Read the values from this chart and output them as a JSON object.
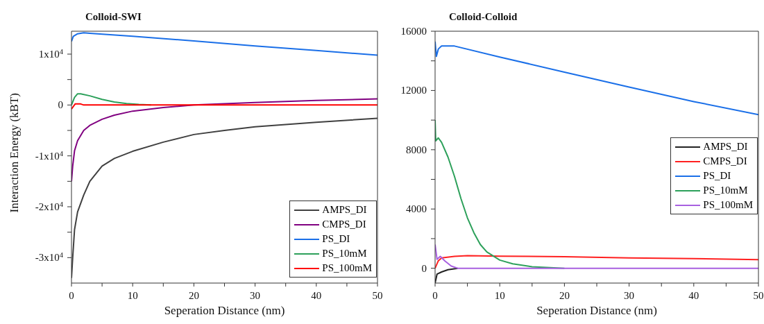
{
  "chart_data": [
    {
      "type": "line",
      "title": "Colloid-SWI",
      "xlabel": "Seperation Distance (nm)",
      "ylabel": "Interaction Energy (kBT)",
      "xlim": [
        0,
        50
      ],
      "xticks": [
        0,
        {
          "value": 5,
          "label": null
        },
        10,
        {
          "value": 15,
          "label": null
        },
        20,
        {
          "value": 25,
          "label": null
        },
        30,
        {
          "value": 35,
          "label": null
        },
        40,
        {
          "value": 45,
          "label": null
        },
        50
      ],
      "ylim": [
        -35000,
        14500
      ],
      "yticks": [
        {
          "value": -30000,
          "label": "-3x10$^{4}$"
        },
        {
          "value": -25000,
          "label": null
        },
        {
          "value": -20000,
          "label": "-2x10$^{4}$"
        },
        {
          "value": -15000,
          "label": null
        },
        {
          "value": -10000,
          "label": "-1x10$^{4}$"
        },
        {
          "value": -5000,
          "label": null
        },
        0,
        {
          "value": 5000,
          "label": null
        },
        {
          "value": 10000,
          "label": "1x10$^{4}$"
        }
      ],
      "legend": "bottom right",
      "marker": "none",
      "line_style": "solid",
      "series": [
        {
          "name": "AMPS_DI",
          "color": "#404040",
          "x": [
            0,
            0.2,
            0.5,
            1,
            2,
            3,
            5,
            7,
            10,
            15,
            20,
            25,
            30,
            40,
            50
          ],
          "values": [
            -34000,
            -30000,
            -24500,
            -21000,
            -17700,
            -15000,
            -12000,
            -10500,
            -9100,
            -7300,
            -5800,
            -5000,
            -4300,
            -3400,
            -2600
          ]
        },
        {
          "name": "CMPS_DI",
          "color": "#800080",
          "x": [
            0,
            0.2,
            0.5,
            1,
            2,
            3,
            5,
            7,
            10,
            15,
            20,
            30,
            40,
            50
          ],
          "values": [
            -15000,
            -12000,
            -9000,
            -7000,
            -5000,
            -4000,
            -2800,
            -2000,
            -1200,
            -500,
            0,
            500,
            900,
            1200
          ]
        },
        {
          "name": "PS_DI",
          "color": "#1a6fe8",
          "x": [
            0,
            0.3,
            1,
            2,
            3,
            10,
            20,
            30,
            40,
            50
          ],
          "values": [
            12500,
            13500,
            14000,
            14200,
            14100,
            13500,
            12600,
            11600,
            10700,
            9800
          ]
        },
        {
          "name": "PS_10mM",
          "color": "#2ca05a",
          "x": [
            0,
            0.5,
            1,
            1.5,
            3,
            5,
            7,
            9,
            11,
            13
          ],
          "values": [
            0,
            1500,
            2200,
            2200,
            1800,
            1100,
            600,
            300,
            100,
            0
          ]
        },
        {
          "name": "PS_100mM",
          "color": "#ff0000",
          "x": [
            0,
            0.3,
            0.6,
            1.5,
            2,
            50
          ],
          "values": [
            -800,
            -300,
            200,
            200,
            0,
            0
          ]
        }
      ]
    },
    {
      "type": "line",
      "title": "Colloid-Colloid",
      "xlabel": "Seperation Distance (nm)",
      "xlim": [
        0,
        50
      ],
      "xticks": [
        0,
        {
          "value": 5,
          "label": null
        },
        10,
        {
          "value": 15,
          "label": null
        },
        20,
        {
          "value": 25,
          "label": null
        },
        30,
        {
          "value": 35,
          "label": null
        },
        40,
        {
          "value": 45,
          "label": null
        },
        50
      ],
      "ylim": [
        -1000,
        16000
      ],
      "yticks": [
        0,
        {
          "value": 2000,
          "label": null
        },
        4000,
        {
          "value": 6000,
          "label": null
        },
        8000,
        {
          "value": 10000,
          "label": null
        },
        12000,
        {
          "value": 14000,
          "label": null
        },
        16000
      ],
      "legend": "right",
      "marker": "none",
      "line_style": "solid",
      "series": [
        {
          "name": "AMPS_DI",
          "color": "#222222",
          "x": [
            0,
            0.3,
            1,
            2,
            3.5
          ],
          "values": [
            -1000,
            -400,
            -250,
            -100,
            0
          ]
        },
        {
          "name": "CMPS_DI",
          "color": "#ff2020",
          "x": [
            0,
            0.5,
            1,
            3,
            5,
            10,
            20,
            30,
            40,
            50
          ],
          "values": [
            0,
            500,
            700,
            800,
            850,
            820,
            780,
            700,
            650,
            580
          ]
        },
        {
          "name": "PS_DI",
          "color": "#1a6fe8",
          "x": [
            0,
            0.2,
            0.5,
            1,
            3,
            10,
            20,
            30,
            40,
            50
          ],
          "values": [
            15300,
            14300,
            14800,
            15000,
            15000,
            14260,
            13240,
            12230,
            11250,
            10370
          ]
        },
        {
          "name": "PS_10mM",
          "color": "#2ca05a",
          "x": [
            0,
            0.1,
            0.5,
            1,
            2,
            3,
            4,
            5,
            6,
            7,
            8,
            10,
            12,
            15,
            20
          ],
          "values": [
            10000,
            8600,
            8800,
            8500,
            7500,
            6200,
            4700,
            3400,
            2400,
            1600,
            1100,
            550,
            300,
            100,
            0
          ]
        },
        {
          "name": "PS_100mM",
          "color": "#a860e0",
          "x": [
            0,
            0.3,
            0.8,
            1.5,
            2.5,
            3.5,
            50
          ],
          "values": [
            1600,
            600,
            800,
            500,
            150,
            0,
            0
          ]
        }
      ]
    }
  ]
}
